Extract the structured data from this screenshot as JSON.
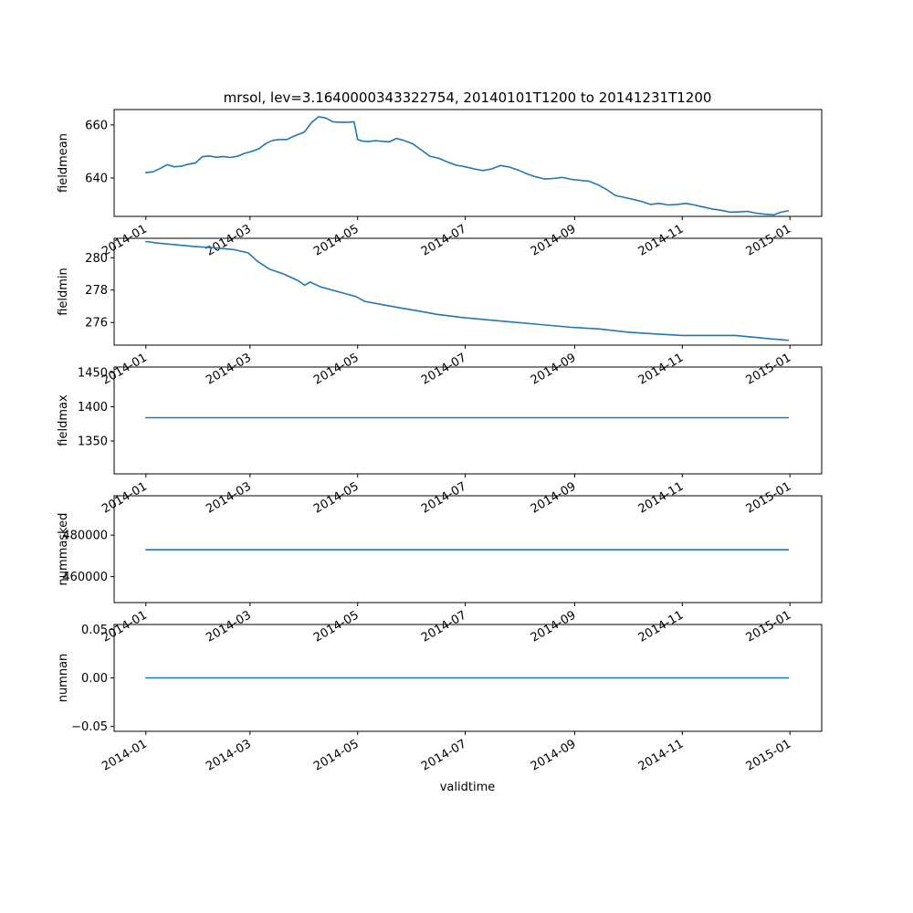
{
  "title": "mrsol, lev=3.1640000343322754, 20140101T1200 to 20141231T1200",
  "xlabel": "validtime",
  "x_ticks": [
    "2014-01",
    "2014-03",
    "2014-05",
    "2014-07",
    "2014-09",
    "2014-11",
    "2015-01"
  ],
  "x_tick_dates": [
    "2014-01-01",
    "2014-03-01",
    "2014-05-01",
    "2014-07-01",
    "2014-09-01",
    "2014-11-01",
    "2015-01-01"
  ],
  "x_range": [
    "2013-12-14",
    "2015-01-19"
  ],
  "line_color": "#1f77b4",
  "chart_data": [
    {
      "type": "line",
      "ylabel": "fieldmean",
      "ylim": [
        625.5,
        665.8
      ],
      "y_ticks": [
        640,
        660
      ],
      "y_tick_labels": [
        "640",
        "660"
      ],
      "x": [
        "2014-01-01",
        "2014-01-05",
        "2014-01-09",
        "2014-01-13",
        "2014-01-17",
        "2014-01-21",
        "2014-01-25",
        "2014-01-29",
        "2014-02-02",
        "2014-02-06",
        "2014-02-10",
        "2014-02-14",
        "2014-02-18",
        "2014-02-22",
        "2014-02-26",
        "2014-03-02",
        "2014-03-06",
        "2014-03-10",
        "2014-03-14",
        "2014-03-18",
        "2014-03-22",
        "2014-03-26",
        "2014-03-30",
        "2014-04-01",
        "2014-04-05",
        "2014-04-09",
        "2014-04-13",
        "2014-04-17",
        "2014-04-21",
        "2014-04-25",
        "2014-04-29",
        "2014-05-01",
        "2014-05-03",
        "2014-05-07",
        "2014-05-11",
        "2014-05-15",
        "2014-05-19",
        "2014-05-23",
        "2014-05-27",
        "2014-06-01",
        "2014-06-06",
        "2014-06-11",
        "2014-06-16",
        "2014-06-21",
        "2014-06-26",
        "2014-07-01",
        "2014-07-06",
        "2014-07-11",
        "2014-07-16",
        "2014-07-21",
        "2014-07-26",
        "2014-07-31",
        "2014-08-05",
        "2014-08-10",
        "2014-08-15",
        "2014-08-20",
        "2014-08-25",
        "2014-08-30",
        "2014-09-04",
        "2014-09-09",
        "2014-09-14",
        "2014-09-19",
        "2014-09-24",
        "2014-09-29",
        "2014-10-04",
        "2014-10-09",
        "2014-10-14",
        "2014-10-19",
        "2014-10-24",
        "2014-10-29",
        "2014-11-03",
        "2014-11-08",
        "2014-11-13",
        "2014-11-18",
        "2014-11-23",
        "2014-11-28",
        "2014-12-03",
        "2014-12-08",
        "2014-12-13",
        "2014-12-18",
        "2014-12-23",
        "2014-12-27",
        "2014-12-31"
      ],
      "y": [
        642,
        642.3,
        643.5,
        645,
        644.2,
        644.4,
        645.2,
        645.6,
        648,
        648.3,
        647.8,
        648.1,
        647.7,
        648.2,
        649.3,
        650,
        651,
        653,
        654.2,
        654.5,
        654.5,
        655.8,
        656.8,
        657.4,
        661,
        663.1,
        662.6,
        661.2,
        661,
        661,
        661.2,
        654.5,
        654,
        653.7,
        654.1,
        653.8,
        653.6,
        654.9,
        654.2,
        653,
        650.6,
        648.2,
        647.4,
        646,
        644.8,
        644.2,
        643.4,
        642.8,
        643.4,
        644.7,
        644.1,
        643,
        641.5,
        640.4,
        639.6,
        639.8,
        640.2,
        639.5,
        639.1,
        638.8,
        637.5,
        635.7,
        633.4,
        632.7,
        631.9,
        631.1,
        630,
        630.4,
        629.8,
        630,
        630.4,
        629.8,
        629,
        628.3,
        627.8,
        627.1,
        627.2,
        627.4,
        626.7,
        626.3,
        626.1,
        627.1,
        627.6
      ]
    },
    {
      "type": "line",
      "ylabel": "fieldmin",
      "ylim": [
        274.6,
        281.2
      ],
      "y_ticks": [
        276,
        278,
        280
      ],
      "y_tick_labels": [
        "276",
        "278",
        "280"
      ],
      "x": [
        "2014-01-01",
        "2014-01-08",
        "2014-01-18",
        "2014-01-28",
        "2014-02-10",
        "2014-02-20",
        "2014-02-28",
        "2014-03-05",
        "2014-03-12",
        "2014-03-20",
        "2014-03-28",
        "2014-04-01",
        "2014-04-04",
        "2014-04-10",
        "2014-04-20",
        "2014-04-30",
        "2014-05-05",
        "2014-05-15",
        "2014-05-25",
        "2014-06-05",
        "2014-06-15",
        "2014-06-30",
        "2014-07-20",
        "2014-08-10",
        "2014-08-30",
        "2014-09-15",
        "2014-10-01",
        "2014-10-15",
        "2014-11-01",
        "2014-11-15",
        "2014-12-01",
        "2014-12-10",
        "2014-12-20",
        "2014-12-31"
      ],
      "y": [
        281,
        280.9,
        280.8,
        280.7,
        280.6,
        280.5,
        280.3,
        279.8,
        279.3,
        279,
        278.6,
        278.3,
        278.5,
        278.2,
        277.9,
        277.6,
        277.3,
        277.1,
        276.9,
        276.7,
        276.5,
        276.3,
        276.1,
        275.9,
        275.7,
        275.6,
        275.4,
        275.3,
        275.2,
        275.2,
        275.2,
        275.1,
        275,
        274.9
      ]
    },
    {
      "type": "line",
      "ylabel": "fieldmax",
      "ylim": [
        1302,
        1458
      ],
      "y_ticks": [
        1350,
        1400,
        1450
      ],
      "y_tick_labels": [
        "1350",
        "1400",
        "1450"
      ],
      "x": [
        "2014-01-01",
        "2014-12-31"
      ],
      "y": [
        1384,
        1384
      ]
    },
    {
      "type": "line",
      "ylabel": "nummasked",
      "ylim": [
        447500,
        499000
      ],
      "y_ticks": [
        460000,
        480000
      ],
      "y_tick_labels": [
        "460000",
        "480000"
      ],
      "x": [
        "2014-01-01",
        "2014-12-31"
      ],
      "y": [
        473000,
        473000
      ]
    },
    {
      "type": "line",
      "ylabel": "numnan",
      "ylim": [
        -0.055,
        0.055
      ],
      "y_ticks": [
        -0.05,
        0.0,
        0.05
      ],
      "y_tick_labels": [
        "−0.05",
        "0.00",
        "0.05"
      ],
      "x": [
        "2014-01-01",
        "2014-12-31"
      ],
      "y": [
        0,
        0
      ]
    }
  ]
}
